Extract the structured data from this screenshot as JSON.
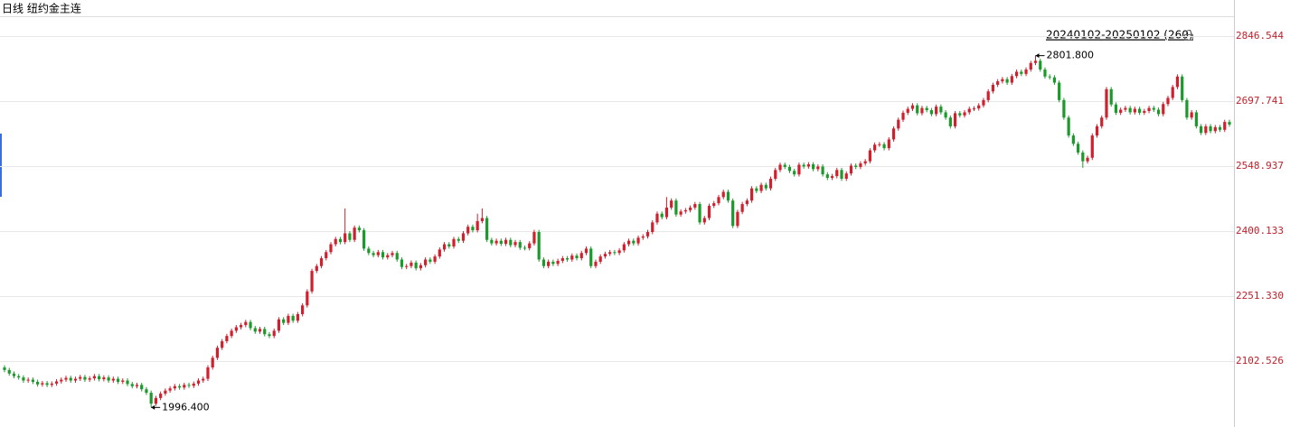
{
  "chart_data": {
    "type": "candlestick",
    "title": "日线  纽约金主连",
    "range_label": "20240102-20250102 (260)",
    "up_color": "#d0202e",
    "down_color": "#1b9a2b",
    "grid": true,
    "ylim": [
      1951.6,
      2892
    ],
    "yticks": [
      2102.526,
      {
        "value": 2251.33,
        "label": "2251.330"
      },
      2400.133,
      2548.937,
      2697.741,
      2846.544
    ],
    "annotations": [
      {
        "value": 2801.8,
        "label": "2801.800"
      },
      {
        "value": 1996.4,
        "label": "1996.400"
      }
    ],
    "open": [
      2088,
      2082,
      2074,
      2068,
      2065,
      2058,
      2060,
      2055,
      2049,
      2052,
      2048,
      2051,
      2056,
      2060,
      2064,
      2058,
      2062,
      2066,
      2060,
      2063,
      2068,
      2061,
      2065,
      2058,
      2062,
      2055,
      2058,
      2050,
      2045,
      2048,
      2038,
      2030,
      2005,
      2018,
      2028,
      2035,
      2040,
      2045,
      2042,
      2048,
      2046,
      2051,
      2058,
      2062,
      2088,
      2110,
      2133,
      2148,
      2160,
      2172,
      2180,
      2185,
      2192,
      2178,
      2170,
      2176,
      2164,
      2160,
      2172,
      2198,
      2190,
      2206,
      2195,
      2210,
      2230,
      2262,
      2309,
      2320,
      2338,
      2352,
      2370,
      2382,
      2375,
      2395,
      2380,
      2408,
      2402,
      2360,
      2350,
      2345,
      2352,
      2340,
      2345,
      2350,
      2335,
      2318,
      2320,
      2328,
      2315,
      2322,
      2335,
      2330,
      2342,
      2358,
      2370,
      2365,
      2382,
      2378,
      2395,
      2410,
      2402,
      2423,
      2430,
      2380,
      2372,
      2378,
      2371,
      2380,
      2368,
      2375,
      2362,
      2361,
      2372,
      2398,
      2335,
      2320,
      2330,
      2325,
      2332,
      2338,
      2335,
      2344,
      2338,
      2350,
      2360,
      2320,
      2330,
      2342,
      2348,
      2352,
      2350,
      2356,
      2370,
      2378,
      2372,
      2385,
      2388,
      2398,
      2420,
      2440,
      2432,
      2454,
      2470,
      2438,
      2445,
      2448,
      2454,
      2462,
      2420,
      2430,
      2458,
      2464,
      2478,
      2490,
      2470,
      2412,
      2444,
      2462,
      2470,
      2498,
      2492,
      2506,
      2498,
      2520,
      2540,
      2552,
      2547,
      2538,
      2530,
      2552,
      2548,
      2553,
      2542,
      2548,
      2530,
      2522,
      2526,
      2540,
      2520,
      2532,
      2550,
      2547,
      2555,
      2560,
      2585,
      2598,
      2599,
      2590,
      2610,
      2635,
      2655,
      2671,
      2680,
      2688,
      2670,
      2682,
      2677,
      2668,
      2685,
      2672,
      2660,
      2640,
      2670,
      2665,
      2672,
      2680,
      2681,
      2688,
      2700,
      2720,
      2735,
      2743,
      2748,
      2740,
      2755,
      2765,
      2760,
      2770,
      2785,
      2790,
      2770,
      2754,
      2752,
      2740,
      2700,
      2660,
      2619,
      2600,
      2580,
      2560,
      2568,
      2619,
      2640,
      2660,
      2725,
      2690,
      2671,
      2678,
      2682,
      2672,
      2680,
      2671,
      2675,
      2682,
      2678,
      2668,
      2691,
      2705,
      2730,
      2754,
      2700,
      2660,
      2672,
      2640,
      2625,
      2640,
      2629,
      2638,
      2632,
      2650
    ],
    "high": [
      2093,
      2087,
      2079,
      2073,
      2070,
      2065,
      2065,
      2060,
      2057,
      2057,
      2056,
      2061,
      2065,
      2069,
      2069,
      2067,
      2071,
      2071,
      2068,
      2073,
      2073,
      2070,
      2070,
      2067,
      2067,
      2063,
      2063,
      2055,
      2053,
      2053,
      2043,
      2035,
      2023,
      2033,
      2040,
      2045,
      2050,
      2050,
      2053,
      2053,
      2056,
      2063,
      2067,
      2093,
      2115,
      2138,
      2153,
      2165,
      2177,
      2185,
      2190,
      2197,
      2197,
      2183,
      2181,
      2181,
      2169,
      2177,
      2203,
      2203,
      2211,
      2211,
      2215,
      2235,
      2267,
      2314,
      2325,
      2343,
      2357,
      2375,
      2387,
      2387,
      2452,
      2400,
      2413,
      2413,
      2407,
      2365,
      2355,
      2357,
      2357,
      2350,
      2355,
      2355,
      2340,
      2325,
      2333,
      2333,
      2327,
      2340,
      2340,
      2347,
      2363,
      2375,
      2375,
      2387,
      2387,
      2400,
      2415,
      2415,
      2440,
      2452,
      2435,
      2385,
      2383,
      2383,
      2385,
      2385,
      2380,
      2380,
      2367,
      2377,
      2403,
      2403,
      2340,
      2335,
      2335,
      2337,
      2343,
      2343,
      2349,
      2349,
      2355,
      2365,
      2365,
      2335,
      2347,
      2353,
      2357,
      2357,
      2361,
      2375,
      2383,
      2383,
      2390,
      2393,
      2403,
      2425,
      2445,
      2445,
      2478,
      2475,
      2475,
      2450,
      2453,
      2459,
      2467,
      2467,
      2435,
      2463,
      2469,
      2483,
      2495,
      2495,
      2475,
      2449,
      2467,
      2475,
      2503,
      2503,
      2511,
      2511,
      2525,
      2545,
      2557,
      2557,
      2552,
      2543,
      2557,
      2557,
      2558,
      2558,
      2553,
      2553,
      2535,
      2531,
      2545,
      2545,
      2537,
      2555,
      2555,
      2560,
      2565,
      2590,
      2603,
      2604,
      2604,
      2615,
      2640,
      2660,
      2676,
      2685,
      2693,
      2693,
      2687,
      2687,
      2682,
      2690,
      2690,
      2677,
      2665,
      2675,
      2675,
      2677,
      2685,
      2686,
      2693,
      2705,
      2725,
      2740,
      2748,
      2753,
      2753,
      2760,
      2770,
      2770,
      2775,
      2790,
      2801.8,
      2795,
      2775,
      2759,
      2757,
      2745,
      2705,
      2665,
      2624,
      2605,
      2585,
      2573,
      2624,
      2645,
      2665,
      2730,
      2730,
      2695,
      2683,
      2687,
      2687,
      2685,
      2685,
      2680,
      2687,
      2687,
      2683,
      2696,
      2710,
      2735,
      2759,
      2759,
      2705,
      2677,
      2677,
      2645,
      2645,
      2645,
      2643,
      2643,
      2655,
      2655
    ],
    "low": [
      2077,
      2069,
      2063,
      2060,
      2053,
      2053,
      2050,
      2044,
      2044,
      2043,
      2043,
      2046,
      2051,
      2055,
      2053,
      2053,
      2057,
      2055,
      2055,
      2058,
      2056,
      2056,
      2053,
      2053,
      2050,
      2050,
      2045,
      2040,
      2040,
      2033,
      2025,
      1996.4,
      2000,
      2013,
      2023,
      2030,
      2035,
      2037,
      2037,
      2041,
      2041,
      2046,
      2053,
      2057,
      2083,
      2105,
      2128,
      2143,
      2155,
      2167,
      2175,
      2180,
      2173,
      2165,
      2165,
      2159,
      2155,
      2155,
      2167,
      2185,
      2185,
      2190,
      2190,
      2205,
      2225,
      2257,
      2304,
      2315,
      2333,
      2347,
      2365,
      2370,
      2370,
      2375,
      2375,
      2397,
      2355,
      2345,
      2340,
      2340,
      2335,
      2335,
      2340,
      2330,
      2313,
      2313,
      2315,
      2310,
      2310,
      2317,
      2325,
      2325,
      2337,
      2353,
      2360,
      2360,
      2373,
      2373,
      2390,
      2397,
      2397,
      2418,
      2375,
      2367,
      2367,
      2366,
      2366,
      2363,
      2363,
      2357,
      2356,
      2356,
      2367,
      2330,
      2315,
      2315,
      2320,
      2320,
      2327,
      2330,
      2330,
      2333,
      2333,
      2345,
      2315,
      2315,
      2325,
      2337,
      2343,
      2345,
      2345,
      2351,
      2365,
      2367,
      2367,
      2380,
      2383,
      2393,
      2415,
      2427,
      2427,
      2449,
      2433,
      2433,
      2440,
      2443,
      2449,
      2415,
      2415,
      2425,
      2453,
      2459,
      2473,
      2465,
      2407,
      2407,
      2439,
      2457,
      2465,
      2487,
      2487,
      2493,
      2493,
      2515,
      2535,
      2542,
      2533,
      2525,
      2525,
      2543,
      2543,
      2537,
      2537,
      2525,
      2517,
      2517,
      2521,
      2515,
      2515,
      2527,
      2542,
      2542,
      2550,
      2555,
      2580,
      2593,
      2585,
      2585,
      2605,
      2630,
      2650,
      2666,
      2675,
      2665,
      2665,
      2672,
      2663,
      2663,
      2667,
      2655,
      2635,
      2635,
      2660,
      2660,
      2667,
      2675,
      2676,
      2683,
      2695,
      2715,
      2730,
      2738,
      2735,
      2735,
      2750,
      2755,
      2755,
      2765,
      2780,
      2765,
      2749,
      2747,
      2735,
      2695,
      2655,
      2614,
      2595,
      2575,
      2545,
      2555,
      2563,
      2614,
      2635,
      2655,
      2685,
      2666,
      2666,
      2673,
      2667,
      2667,
      2666,
      2666,
      2670,
      2673,
      2663,
      2663,
      2686,
      2700,
      2725,
      2695,
      2655,
      2655,
      2635,
      2620,
      2620,
      2624,
      2624,
      2627,
      2627,
      2639
    ],
    "close": [
      2082,
      2074,
      2068,
      2065,
      2058,
      2060,
      2055,
      2049,
      2052,
      2048,
      2051,
      2056,
      2060,
      2064,
      2058,
      2062,
      2066,
      2060,
      2063,
      2068,
      2061,
      2065,
      2058,
      2062,
      2055,
      2058,
      2050,
      2045,
      2048,
      2038,
      2030,
      2005,
      2018,
      2028,
      2035,
      2040,
      2045,
      2042,
      2048,
      2046,
      2051,
      2058,
      2062,
      2088,
      2110,
      2133,
      2148,
      2160,
      2172,
      2180,
      2185,
      2192,
      2178,
      2170,
      2176,
      2164,
      2160,
      2172,
      2198,
      2190,
      2206,
      2195,
      2210,
      2230,
      2262,
      2309,
      2320,
      2338,
      2352,
      2370,
      2382,
      2375,
      2395,
      2380,
      2408,
      2402,
      2360,
      2350,
      2345,
      2352,
      2340,
      2345,
      2350,
      2335,
      2318,
      2320,
      2328,
      2315,
      2322,
      2335,
      2330,
      2342,
      2358,
      2370,
      2365,
      2382,
      2378,
      2395,
      2410,
      2402,
      2423,
      2430,
      2380,
      2372,
      2378,
      2371,
      2380,
      2368,
      2375,
      2362,
      2361,
      2372,
      2398,
      2335,
      2320,
      2330,
      2325,
      2332,
      2338,
      2335,
      2344,
      2338,
      2350,
      2360,
      2320,
      2330,
      2342,
      2348,
      2352,
      2350,
      2356,
      2370,
      2378,
      2372,
      2385,
      2388,
      2398,
      2420,
      2440,
      2432,
      2454,
      2470,
      2438,
      2445,
      2448,
      2454,
      2462,
      2420,
      2430,
      2458,
      2464,
      2478,
      2490,
      2470,
      2412,
      2444,
      2462,
      2470,
      2498,
      2492,
      2506,
      2498,
      2520,
      2540,
      2552,
      2547,
      2538,
      2530,
      2552,
      2548,
      2553,
      2542,
      2548,
      2530,
      2522,
      2526,
      2540,
      2520,
      2532,
      2550,
      2547,
      2555,
      2560,
      2585,
      2598,
      2599,
      2590,
      2610,
      2635,
      2655,
      2671,
      2680,
      2688,
      2670,
      2682,
      2677,
      2668,
      2685,
      2672,
      2660,
      2640,
      2670,
      2665,
      2672,
      2680,
      2681,
      2688,
      2700,
      2720,
      2735,
      2743,
      2748,
      2740,
      2755,
      2765,
      2760,
      2770,
      2785,
      2790,
      2770,
      2754,
      2752,
      2740,
      2700,
      2660,
      2619,
      2600,
      2580,
      2560,
      2568,
      2619,
      2640,
      2660,
      2725,
      2690,
      2671,
      2678,
      2682,
      2672,
      2680,
      2671,
      2675,
      2682,
      2678,
      2668,
      2691,
      2705,
      2730,
      2754,
      2700,
      2660,
      2672,
      2640,
      2625,
      2640,
      2629,
      2638,
      2632,
      2650,
      2644
    ]
  }
}
